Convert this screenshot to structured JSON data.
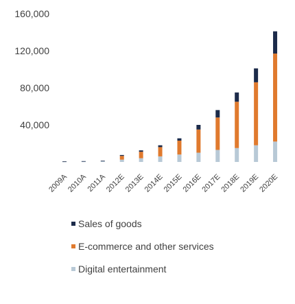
{
  "chart_data": {
    "type": "bar",
    "stacked": true,
    "categories": [
      "2009A",
      "2010A",
      "2011A",
      "2012E",
      "2013E",
      "2014E",
      "2015E",
      "2016E",
      "2017E",
      "2018E",
      "2019E",
      "2020E"
    ],
    "series": [
      {
        "name": "Digital entertainment",
        "color": "#b8c9d6",
        "values": [
          300,
          500,
          800,
          2500,
          4000,
          6000,
          8000,
          10000,
          13000,
          15000,
          18000,
          22000
        ]
      },
      {
        "name": "E-commerce and other services",
        "color": "#e07a2e",
        "values": [
          0,
          0,
          0,
          4000,
          7000,
          10000,
          15000,
          25000,
          35000,
          50000,
          68000,
          95000
        ]
      },
      {
        "name": "Sales of goods",
        "color": "#1c2b4a",
        "values": [
          300,
          400,
          500,
          1000,
          1500,
          2000,
          2500,
          5000,
          8000,
          10000,
          15000,
          24000
        ]
      }
    ],
    "yticks": [
      40000,
      80000,
      120000,
      160000
    ],
    "ytick_labels": [
      "40,000",
      "80,000",
      "120,000",
      "160,000"
    ],
    "ylim": [
      0,
      160000
    ],
    "grid": false,
    "legend_position": "bottom"
  }
}
